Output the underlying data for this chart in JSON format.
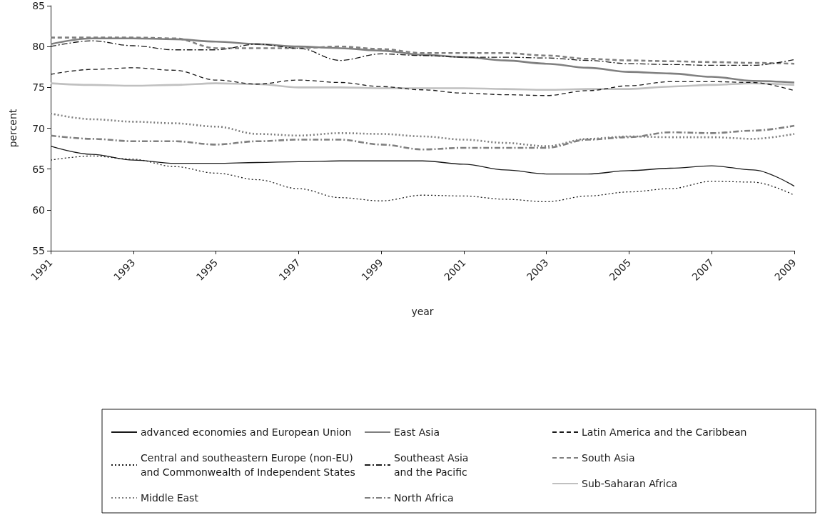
{
  "chart_data": {
    "type": "line",
    "xlabel": "year",
    "ylabel": "percent",
    "x": [
      1991,
      1992,
      1993,
      1994,
      1995,
      1996,
      1997,
      1998,
      1999,
      2000,
      2001,
      2002,
      2003,
      2004,
      2005,
      2006,
      2007,
      2008,
      2009
    ],
    "xlim": [
      1991,
      2009
    ],
    "xticks": [
      1991,
      1993,
      1995,
      1997,
      1999,
      2001,
      2003,
      2005,
      2007,
      2009
    ],
    "ylim": [
      55,
      85
    ],
    "yticks": [
      55,
      60,
      65,
      70,
      75,
      80,
      85
    ],
    "grid": false,
    "legend": "bottom",
    "marker": "none",
    "series": [
      {
        "name": "advanced economies and European Union",
        "color": "#1a1a1a",
        "line_style": "solid",
        "values": [
          67.8,
          66.8,
          66.1,
          65.7,
          65.7,
          65.8,
          65.9,
          66.0,
          66.0,
          66.0,
          65.6,
          64.9,
          64.4,
          64.4,
          64.8,
          65.1,
          65.4,
          64.9,
          62.9
        ]
      },
      {
        "name": "East Asia",
        "color": "#808080",
        "line_style": "solid",
        "values": [
          80.3,
          81.0,
          81.0,
          80.9,
          80.6,
          80.3,
          80.0,
          79.8,
          79.5,
          79.0,
          78.7,
          78.3,
          77.9,
          77.4,
          76.9,
          76.7,
          76.3,
          75.8,
          75.6
        ]
      },
      {
        "name": "Latin America and the Caribbean",
        "color": "#1a1a1a",
        "line_style": "dashed",
        "values": [
          76.6,
          77.2,
          77.4,
          77.1,
          75.9,
          75.4,
          75.9,
          75.6,
          75.1,
          74.7,
          74.3,
          74.1,
          74.0,
          74.6,
          75.2,
          75.7,
          75.7,
          75.6,
          74.6
        ]
      },
      {
        "name": "Central and southeastern Europe (non-EU) and Commonwealth of Independent States",
        "color": "#1a1a1a",
        "line_style": "dotted",
        "values": [
          66.1,
          66.6,
          66.2,
          65.3,
          64.5,
          63.7,
          62.6,
          61.5,
          61.1,
          61.8,
          61.7,
          61.3,
          61.0,
          61.7,
          62.2,
          62.6,
          63.5,
          63.4,
          61.8
        ]
      },
      {
        "name": "Southeast Asia and the Pacific",
        "color": "#1a1a1a",
        "line_style": "dashdot",
        "values": [
          80.0,
          80.7,
          80.1,
          79.6,
          79.6,
          80.3,
          79.8,
          78.3,
          79.1,
          78.9,
          78.7,
          78.7,
          78.6,
          78.3,
          77.9,
          77.8,
          77.7,
          77.7,
          78.4
        ]
      },
      {
        "name": "South Asia",
        "color": "#808080",
        "line_style": "dashed",
        "values": [
          81.1,
          81.1,
          81.1,
          81.0,
          79.8,
          79.8,
          79.8,
          80.0,
          79.7,
          79.2,
          79.2,
          79.2,
          78.9,
          78.5,
          78.3,
          78.2,
          78.1,
          78.0,
          77.9
        ]
      },
      {
        "name": "Middle East",
        "color": "#808080",
        "line_style": "dotted",
        "values": [
          71.8,
          71.1,
          70.8,
          70.6,
          70.2,
          69.3,
          69.1,
          69.4,
          69.3,
          69.0,
          68.6,
          68.2,
          67.8,
          68.7,
          69.0,
          68.9,
          68.9,
          68.7,
          69.3
        ]
      },
      {
        "name": "North Africa",
        "color": "#808080",
        "line_style": "dashdot",
        "values": [
          69.1,
          68.7,
          68.4,
          68.4,
          68.0,
          68.4,
          68.6,
          68.6,
          68.0,
          67.4,
          67.6,
          67.6,
          67.6,
          68.6,
          68.9,
          69.5,
          69.4,
          69.7,
          70.3
        ]
      },
      {
        "name": "Sub-Saharan Africa",
        "color": "#c0c0c0",
        "line_style": "solid",
        "values": [
          75.5,
          75.3,
          75.2,
          75.3,
          75.5,
          75.4,
          75.0,
          75.0,
          74.9,
          74.9,
          74.9,
          74.8,
          74.7,
          74.8,
          74.8,
          75.1,
          75.3,
          75.5,
          75.3
        ]
      }
    ]
  }
}
